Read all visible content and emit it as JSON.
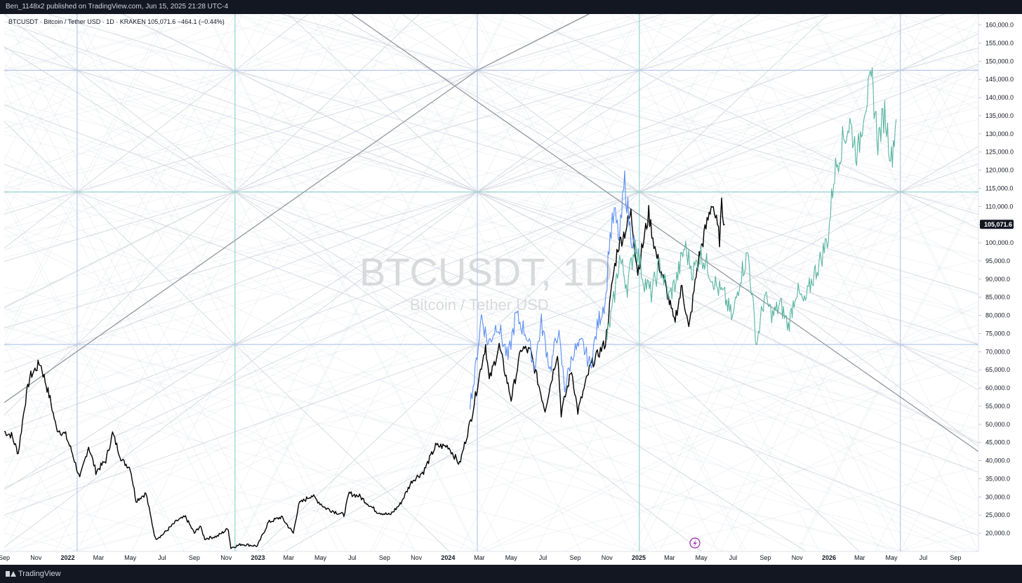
{
  "header": {
    "publish_info": "Ben_1148x2 published on TradingView.com, Jun 15, 2025 21:28 UTC-4"
  },
  "footer": {
    "brand": "TradingView"
  },
  "watermark": {
    "symbol": "BTCUSDT, 1D",
    "description": "Bitcoin / Tether USD"
  },
  "legend": {
    "text": "BTCUSDT · Bitcoin / Tether USD · 1D · KRAKEN  105,071.6  −464.1 (−0.44%)"
  },
  "last_price": {
    "label": "105,071.6",
    "value": 105071.6,
    "color": "#131722"
  },
  "colors": {
    "price_line": "#000000",
    "projection_blue": "#5b8ef0",
    "projection_green": "#5ab5a2",
    "grid_teal": "#93d3cf",
    "grid_blue": "#b7c8ee",
    "fan_lines": "#cfd4dd",
    "trend_line": "#9598a1"
  },
  "chart_data": {
    "type": "line",
    "title": "BTCUSDT · Bitcoin / Tether USD · 1D · KRAKEN",
    "x_axis": {
      "start": "2021-09-01",
      "end": "2026-10-15",
      "ticks": [
        {
          "label": "Sep",
          "date": "2021-09-01",
          "bold": false
        },
        {
          "label": "Nov",
          "date": "2021-11-01",
          "bold": false
        },
        {
          "label": "2022",
          "date": "2022-01-01",
          "bold": true
        },
        {
          "label": "Mar",
          "date": "2022-03-01",
          "bold": false
        },
        {
          "label": "May",
          "date": "2022-05-01",
          "bold": false
        },
        {
          "label": "Jul",
          "date": "2022-07-01",
          "bold": false
        },
        {
          "label": "Sep",
          "date": "2022-09-01",
          "bold": false
        },
        {
          "label": "Nov",
          "date": "2022-11-01",
          "bold": false
        },
        {
          "label": "2023",
          "date": "2023-01-01",
          "bold": true
        },
        {
          "label": "Mar",
          "date": "2023-03-01",
          "bold": false
        },
        {
          "label": "May",
          "date": "2023-05-01",
          "bold": false
        },
        {
          "label": "Jul",
          "date": "2023-07-01",
          "bold": false
        },
        {
          "label": "Sep",
          "date": "2023-09-01",
          "bold": false
        },
        {
          "label": "Nov",
          "date": "2023-11-01",
          "bold": false
        },
        {
          "label": "2024",
          "date": "2024-01-01",
          "bold": true
        },
        {
          "label": "Mar",
          "date": "2024-03-01",
          "bold": false
        },
        {
          "label": "May",
          "date": "2024-05-01",
          "bold": false
        },
        {
          "label": "Jul",
          "date": "2024-07-01",
          "bold": false
        },
        {
          "label": "Sep",
          "date": "2024-09-01",
          "bold": false
        },
        {
          "label": "Nov",
          "date": "2024-11-01",
          "bold": false
        },
        {
          "label": "2025",
          "date": "2025-01-01",
          "bold": true
        },
        {
          "label": "Mar",
          "date": "2025-03-01",
          "bold": false
        },
        {
          "label": "May",
          "date": "2025-05-01",
          "bold": false
        },
        {
          "label": "Jul",
          "date": "2025-07-01",
          "bold": false
        },
        {
          "label": "Sep",
          "date": "2025-09-01",
          "bold": false
        },
        {
          "label": "Nov",
          "date": "2025-11-01",
          "bold": false
        },
        {
          "label": "2026",
          "date": "2026-01-01",
          "bold": true
        },
        {
          "label": "Mar",
          "date": "2026-03-01",
          "bold": false
        },
        {
          "label": "May",
          "date": "2026-05-01",
          "bold": false
        },
        {
          "label": "Jul",
          "date": "2026-07-01",
          "bold": false
        },
        {
          "label": "Sep",
          "date": "2026-09-01",
          "bold": false
        }
      ]
    },
    "y_axis": {
      "ylim": [
        15000,
        163000
      ],
      "ticks": [
        {
          "label": "160,000.0",
          "value": 160000
        },
        {
          "label": "155,000.0",
          "value": 155000
        },
        {
          "label": "150,000.0",
          "value": 150000
        },
        {
          "label": "145,000.0",
          "value": 145000
        },
        {
          "label": "140,000.0",
          "value": 140000
        },
        {
          "label": "135,000.0",
          "value": 135000
        },
        {
          "label": "130,000.0",
          "value": 130000
        },
        {
          "label": "125,000.0",
          "value": 125000
        },
        {
          "label": "120,000.0",
          "value": 120000
        },
        {
          "label": "115,000.0",
          "value": 115000
        },
        {
          "label": "110,000.0",
          "value": 110000
        },
        {
          "label": "105,000.0",
          "value": 105000
        },
        {
          "label": "100,000.0",
          "value": 100000
        },
        {
          "label": "95,000.0",
          "value": 95000
        },
        {
          "label": "90,000.0",
          "value": 90000
        },
        {
          "label": "85,000.0",
          "value": 85000
        },
        {
          "label": "80,000.0",
          "value": 80000
        },
        {
          "label": "75,000.0",
          "value": 75000
        },
        {
          "label": "70,000.0",
          "value": 70000
        },
        {
          "label": "65,000.0",
          "value": 65000
        },
        {
          "label": "60,000.0",
          "value": 60000
        },
        {
          "label": "55,000.0",
          "value": 55000
        },
        {
          "label": "50,000.0",
          "value": 50000
        },
        {
          "label": "45,000.0",
          "value": 45000
        },
        {
          "label": "40,000.0",
          "value": 40000
        },
        {
          "label": "35,000.0",
          "value": 35000
        },
        {
          "label": "30,000.0",
          "value": 30000
        },
        {
          "label": "25,000.0",
          "value": 25000
        },
        {
          "label": "20,000.0",
          "value": 20000
        }
      ]
    },
    "grid": false,
    "gann_grid": {
      "vertical_dates": [
        "2022-01-19",
        "2022-11-18",
        "2024-02-26",
        "2025-01-02",
        "2026-05-18"
      ],
      "horizontal_prices": [
        147500,
        114000,
        72000
      ],
      "extents": {
        "left_date": "2021-09-01",
        "right_date": "2026-10-15",
        "top_price": 163000,
        "bottom_price": 15000
      }
    },
    "trend_lines": [
      {
        "points": [
          {
            "date": "2021-09-01",
            "price": 56000
          },
          {
            "date": "2024-02-26",
            "price": 147500
          },
          {
            "date": "2024-09-27",
            "price": 163000
          }
        ]
      },
      {
        "points": [
          {
            "date": "2023-06-30",
            "price": 163000
          },
          {
            "date": "2026-10-15",
            "price": 42500
          }
        ]
      }
    ],
    "series": [
      {
        "name": "",
        "style": "price",
        "color": "#000000",
        "points": [
          [
            "2021-09-01",
            48000
          ],
          [
            "2021-09-15",
            47000
          ],
          [
            "2021-09-28",
            42000
          ],
          [
            "2021-10-10",
            55000
          ],
          [
            "2021-10-20",
            63000
          ],
          [
            "2021-11-09",
            67000
          ],
          [
            "2021-11-28",
            57000
          ],
          [
            "2021-12-10",
            49000
          ],
          [
            "2021-12-28",
            47000
          ],
          [
            "2022-01-10",
            42000
          ],
          [
            "2022-01-24",
            35000
          ],
          [
            "2022-02-10",
            44000
          ],
          [
            "2022-02-24",
            37000
          ],
          [
            "2022-03-15",
            40000
          ],
          [
            "2022-03-28",
            47500
          ],
          [
            "2022-04-15",
            40000
          ],
          [
            "2022-05-01",
            38000
          ],
          [
            "2022-05-12",
            29000
          ],
          [
            "2022-05-31",
            31000
          ],
          [
            "2022-06-18",
            18500
          ],
          [
            "2022-07-01",
            19500
          ],
          [
            "2022-07-30",
            23500
          ],
          [
            "2022-08-15",
            24500
          ],
          [
            "2022-09-01",
            20000
          ],
          [
            "2022-09-12",
            22000
          ],
          [
            "2022-09-21",
            18500
          ],
          [
            "2022-10-15",
            19200
          ],
          [
            "2022-11-05",
            21300
          ],
          [
            "2022-11-10",
            16000
          ],
          [
            "2022-12-01",
            17000
          ],
          [
            "2022-12-31",
            16500
          ],
          [
            "2023-01-21",
            23000
          ],
          [
            "2023-02-15",
            24500
          ],
          [
            "2023-03-10",
            20000
          ],
          [
            "2023-03-20",
            28000
          ],
          [
            "2023-04-14",
            30500
          ],
          [
            "2023-05-10",
            27000
          ],
          [
            "2023-06-15",
            25000
          ],
          [
            "2023-06-25",
            31000
          ],
          [
            "2023-07-15",
            30200
          ],
          [
            "2023-08-17",
            26000
          ],
          [
            "2023-09-11",
            25000
          ],
          [
            "2023-10-01",
            28000
          ],
          [
            "2023-10-24",
            34500
          ],
          [
            "2023-11-15",
            37000
          ],
          [
            "2023-12-08",
            44000
          ],
          [
            "2024-01-01",
            44000
          ],
          [
            "2024-01-23",
            39000
          ],
          [
            "2024-02-15",
            52000
          ],
          [
            "2024-02-28",
            62000
          ],
          [
            "2024-03-13",
            72000
          ],
          [
            "2024-03-20",
            62000
          ],
          [
            "2024-04-08",
            71500
          ],
          [
            "2024-05-01",
            57000
          ],
          [
            "2024-05-21",
            71000
          ],
          [
            "2024-06-07",
            70000
          ],
          [
            "2024-07-05",
            54000
          ],
          [
            "2024-07-29",
            70000
          ],
          [
            "2024-08-05",
            53000
          ],
          [
            "2024-08-25",
            65000
          ],
          [
            "2024-09-06",
            53500
          ],
          [
            "2024-09-30",
            66000
          ],
          [
            "2024-10-29",
            72500
          ],
          [
            "2024-11-12",
            90000
          ],
          [
            "2024-11-22",
            99000
          ],
          [
            "2024-12-05",
            103000
          ],
          [
            "2024-12-17",
            108000
          ],
          [
            "2024-12-30",
            92000
          ],
          [
            "2025-01-20",
            108000
          ],
          [
            "2025-02-03",
            97000
          ],
          [
            "2025-02-25",
            86000
          ],
          [
            "2025-03-10",
            78000
          ],
          [
            "2025-03-25",
            88000
          ],
          [
            "2025-04-07",
            76000
          ],
          [
            "2025-04-25",
            95000
          ],
          [
            "2025-05-08",
            103000
          ],
          [
            "2025-05-22",
            111500
          ],
          [
            "2025-06-05",
            101000
          ],
          [
            "2025-06-09",
            110000
          ],
          [
            "2025-06-15",
            105071.6
          ]
        ]
      },
      {
        "name": "",
        "style": "projection",
        "color": "#5b8ef0",
        "points": [
          [
            "2024-02-12",
            56000
          ],
          [
            "2024-02-20",
            62000
          ],
          [
            "2024-03-05",
            80000
          ],
          [
            "2024-03-18",
            72000
          ],
          [
            "2024-04-05",
            78000
          ],
          [
            "2024-04-25",
            68000
          ],
          [
            "2024-05-10",
            80000
          ],
          [
            "2024-05-30",
            75000
          ],
          [
            "2024-06-15",
            66000
          ],
          [
            "2024-06-28",
            78000
          ],
          [
            "2024-07-15",
            65000
          ],
          [
            "2024-07-30",
            76000
          ],
          [
            "2024-08-12",
            60000
          ],
          [
            "2024-08-28",
            70000
          ],
          [
            "2024-09-15",
            72000
          ],
          [
            "2024-09-30",
            66000
          ],
          [
            "2024-10-15",
            78000
          ],
          [
            "2024-10-30",
            85000
          ],
          [
            "2024-11-05",
            100000
          ],
          [
            "2024-11-15",
            108000
          ],
          [
            "2024-11-25",
            101000
          ],
          [
            "2024-12-05",
            117000
          ],
          [
            "2024-12-15",
            104000
          ],
          [
            "2024-12-28",
            97000
          ]
        ]
      },
      {
        "name": "",
        "style": "projection",
        "color": "#5ab5a2",
        "points": [
          [
            "2024-11-01",
            74000
          ],
          [
            "2024-11-12",
            82000
          ],
          [
            "2024-11-25",
            96000
          ],
          [
            "2024-12-10",
            88000
          ],
          [
            "2024-12-25",
            100000
          ],
          [
            "2025-01-10",
            90000
          ],
          [
            "2025-01-25",
            86000
          ],
          [
            "2025-02-10",
            94000
          ],
          [
            "2025-02-28",
            85000
          ],
          [
            "2025-03-15",
            90000
          ],
          [
            "2025-03-30",
            99000
          ],
          [
            "2025-04-15",
            92000
          ],
          [
            "2025-04-30",
            97000
          ],
          [
            "2025-05-15",
            93000
          ],
          [
            "2025-05-30",
            88000
          ],
          [
            "2025-06-15",
            85000
          ],
          [
            "2025-06-30",
            79000
          ],
          [
            "2025-07-15",
            91000
          ],
          [
            "2025-07-30",
            97000
          ],
          [
            "2025-08-15",
            72000
          ],
          [
            "2025-08-30",
            85000
          ],
          [
            "2025-09-15",
            80000
          ],
          [
            "2025-09-30",
            83000
          ],
          [
            "2025-10-15",
            77000
          ],
          [
            "2025-10-30",
            87000
          ],
          [
            "2025-11-15",
            83000
          ],
          [
            "2025-11-30",
            90000
          ],
          [
            "2025-12-15",
            95000
          ],
          [
            "2025-12-31",
            102000
          ],
          [
            "2026-01-10",
            118000
          ],
          [
            "2026-01-25",
            127000
          ],
          [
            "2026-02-10",
            133000
          ],
          [
            "2026-02-25",
            124000
          ],
          [
            "2026-03-10",
            138000
          ],
          [
            "2026-03-25",
            144000
          ],
          [
            "2026-04-05",
            128000
          ],
          [
            "2026-04-18",
            136000
          ],
          [
            "2026-05-01",
            123000
          ],
          [
            "2026-05-10",
            134000
          ]
        ]
      }
    ]
  }
}
